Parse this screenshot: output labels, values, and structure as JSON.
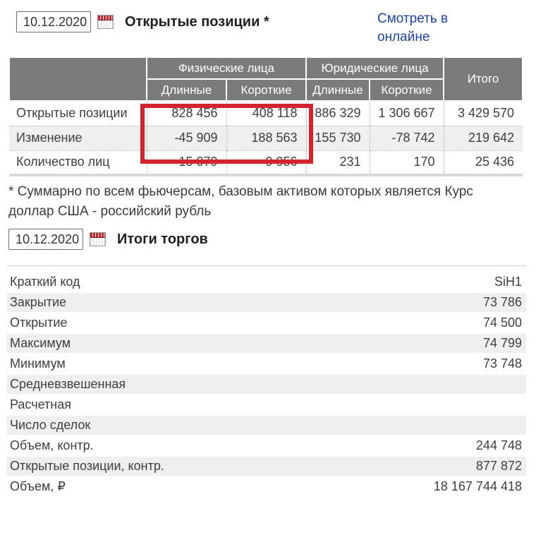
{
  "colors": {
    "highlight_red": "#d4232c",
    "calendar_red": "#c4242b",
    "link_blue": "#1b43a8",
    "header_gray": "#7b7b7b",
    "row_stripe_gray": "#efefef"
  },
  "open_positions": {
    "date_value": "10.12.2020",
    "title": "Открытые позиции *",
    "online_link_label": "Смотреть в онлайне",
    "table": {
      "col_groups": [
        "Физические лица",
        "Юридические лица"
      ],
      "total_header": "Итого",
      "sub_headers": [
        "Длинные",
        "Короткие",
        "Длинные",
        "Короткие"
      ],
      "rows": [
        {
          "label": "Открытые позиции",
          "values": [
            "828 456",
            "408 118",
            "886 329",
            "1 306 667",
            "3 429 570"
          ]
        },
        {
          "label": "Изменение",
          "values": [
            "-45 909",
            "188 563",
            "155 730",
            "-78 742",
            "219 642"
          ]
        },
        {
          "label": "Количество лиц",
          "values": [
            "15 079",
            "9 956",
            "231",
            "170",
            "25 436"
          ]
        }
      ]
    },
    "footnote": "* Суммарно по всем фьючерсам, базовым активом которых является Курс доллар США - российский рубль"
  },
  "trading_results": {
    "date_value": "10.12.2020",
    "title": "Итоги торгов",
    "rows": [
      {
        "label": "Краткий код",
        "value": "SiH1"
      },
      {
        "label": "Закрытие",
        "value": "73 786"
      },
      {
        "label": "Открытие",
        "value": "74 500"
      },
      {
        "label": "Максимум",
        "value": "74 799"
      },
      {
        "label": "Минимум",
        "value": "73 748"
      },
      {
        "label": "Средневзвешенная",
        "value": ""
      },
      {
        "label": "Расчетная",
        "value": ""
      },
      {
        "label": "Число сделок",
        "value": ""
      },
      {
        "label": "Объем, контр.",
        "value": "244 748"
      },
      {
        "label": "Открытые позиции, контр.",
        "value": "877 872"
      },
      {
        "label": "Объем, ₽",
        "value": "18 167 744 418"
      }
    ]
  }
}
